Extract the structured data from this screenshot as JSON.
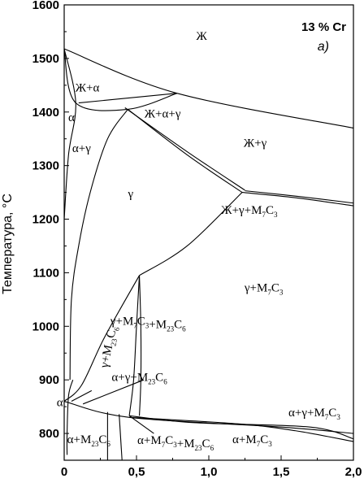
{
  "chart_data": {
    "type": "phase-diagram",
    "ylabel": "Температура, °C",
    "xlim": [
      0,
      2.0
    ],
    "ylim": [
      750,
      1600
    ],
    "x_ticks": [
      "0",
      "0,5",
      "1,0",
      "1,5",
      "2,0"
    ],
    "y_ticks": [
      "800",
      "900",
      "1000",
      "1100",
      "1200",
      "1300",
      "1400",
      "1500",
      "1600"
    ],
    "annotation": "13 % Cr",
    "panel_label": "а)",
    "regions": [
      {
        "key": "zh",
        "label": "Ж",
        "x": 0.95,
        "y": 1535
      },
      {
        "key": "zh_alpha",
        "label": "Ж+α",
        "x": 0.16,
        "y": 1438
      },
      {
        "key": "alpha",
        "label": "α",
        "x": 0.05,
        "y": 1383
      },
      {
        "key": "zh_alpha_gamma",
        "label": "Ж+α+γ",
        "x": 0.68,
        "y": 1390
      },
      {
        "key": "alpha_gamma",
        "label": "α+γ",
        "x": 0.12,
        "y": 1325
      },
      {
        "key": "zh_gamma",
        "label": "Ж+γ",
        "x": 1.32,
        "y": 1335
      },
      {
        "key": "gamma",
        "label": "γ",
        "x": 0.46,
        "y": 1240
      },
      {
        "key": "zh_gamma_m7c3",
        "label": "Ж+γ+M7C3",
        "x": 1.28,
        "y": 1210
      },
      {
        "key": "gamma_m7c3",
        "label": "γ+M7C3",
        "x": 1.38,
        "y": 1065
      },
      {
        "key": "gamma_m7c3_m23c6",
        "label": "γ+M7C3+M23C6",
        "x": 0.58,
        "y": 1003
      },
      {
        "key": "gamma_m23c6",
        "label": "γ+M23C6",
        "x": 0.33,
        "y": 960
      },
      {
        "key": "alpha_gamma_m23c6",
        "label": "α+γ+M23C6",
        "x": 0.52,
        "y": 898
      },
      {
        "key": "alpha_left",
        "label": "α",
        "x": -0.03,
        "y": 851
      },
      {
        "key": "alpha_gamma_m7c3",
        "label": "α+γ+M7C3",
        "x": 1.73,
        "y": 832
      },
      {
        "key": "alpha_m23c6",
        "label": "α+M23C6",
        "x": 0.17,
        "y": 782
      },
      {
        "key": "alpha_m7c3_m23c6",
        "label": "α+M7C3+M23C6",
        "x": 0.77,
        "y": 780
      },
      {
        "key": "alpha_m7c3",
        "label": "α+M7C3",
        "x": 1.3,
        "y": 782
      }
    ],
    "curves": [
      [
        [
          0,
          1518
        ],
        [
          0.78,
          1435
        ],
        [
          2.0,
          1370
        ]
      ],
      [
        [
          0,
          1518
        ],
        [
          0.08,
          1417
        ],
        [
          0.44,
          1405
        ],
        [
          0.78,
          1435
        ]
      ],
      [
        [
          0.1,
          1417
        ],
        [
          0.78,
          1435
        ]
      ],
      [
        [
          0,
          1518
        ],
        [
          0.08,
          1417
        ],
        [
          0.03,
          1320
        ],
        [
          0,
          1200
        ]
      ],
      [
        [
          0.44,
          1405
        ],
        [
          0.3,
          1350
        ],
        [
          0.18,
          1250
        ],
        [
          0.1,
          1150
        ],
        [
          0.05,
          1050
        ],
        [
          0.04,
          900
        ]
      ],
      [
        [
          0.44,
          1405
        ],
        [
          0.85,
          1320
        ],
        [
          1.23,
          1250
        ]
      ],
      [
        [
          0.42,
          1408
        ],
        [
          0.85,
          1326
        ],
        [
          1.25,
          1254
        ]
      ],
      [
        [
          1.23,
          1250
        ],
        [
          1.6,
          1240
        ],
        [
          2.0,
          1225
        ]
      ],
      [
        [
          1.25,
          1253
        ],
        [
          1.6,
          1243
        ],
        [
          2.0,
          1230
        ]
      ],
      [
        [
          1.23,
          1250
        ],
        [
          0.85,
          1150
        ],
        [
          0.52,
          1095
        ]
      ],
      [
        [
          0.52,
          1095
        ],
        [
          0.28,
          980
        ],
        [
          0.12,
          890
        ],
        [
          0,
          860
        ]
      ],
      [
        [
          0,
          860
        ],
        [
          0.45,
          830
        ],
        [
          1.5,
          812
        ],
        [
          2.0,
          800
        ]
      ],
      [
        [
          0.45,
          830
        ],
        [
          1.2,
          818
        ],
        [
          1.6,
          805
        ],
        [
          2.0,
          785
        ]
      ],
      [
        [
          0.45,
          833
        ],
        [
          0.9,
          820
        ],
        [
          1.7,
          812
        ],
        [
          2.0,
          790
        ]
      ],
      [
        [
          0.52,
          1095
        ],
        [
          0.5,
          1000
        ],
        [
          0.48,
          900
        ],
        [
          0.45,
          833
        ]
      ],
      [
        [
          0.52,
          1095
        ],
        [
          0.53,
          1000
        ],
        [
          0.53,
          900
        ],
        [
          0.52,
          833
        ]
      ],
      [
        [
          0.19,
          880
        ],
        [
          0.05,
          860
        ]
      ],
      [
        [
          0.13,
          855
        ],
        [
          0.55,
          900
        ]
      ],
      [
        [
          0.3,
          840
        ],
        [
          0.3,
          800
        ],
        [
          0.3,
          750
        ]
      ],
      [
        [
          0.38,
          836
        ],
        [
          0.4,
          750
        ]
      ],
      [
        [
          0.45,
          833
        ],
        [
          0.62,
          800
        ]
      ],
      [
        [
          0.06,
          900
        ],
        [
          0.03,
          870
        ],
        [
          0.02,
          800
        ],
        [
          0.02,
          760
        ]
      ]
    ]
  }
}
